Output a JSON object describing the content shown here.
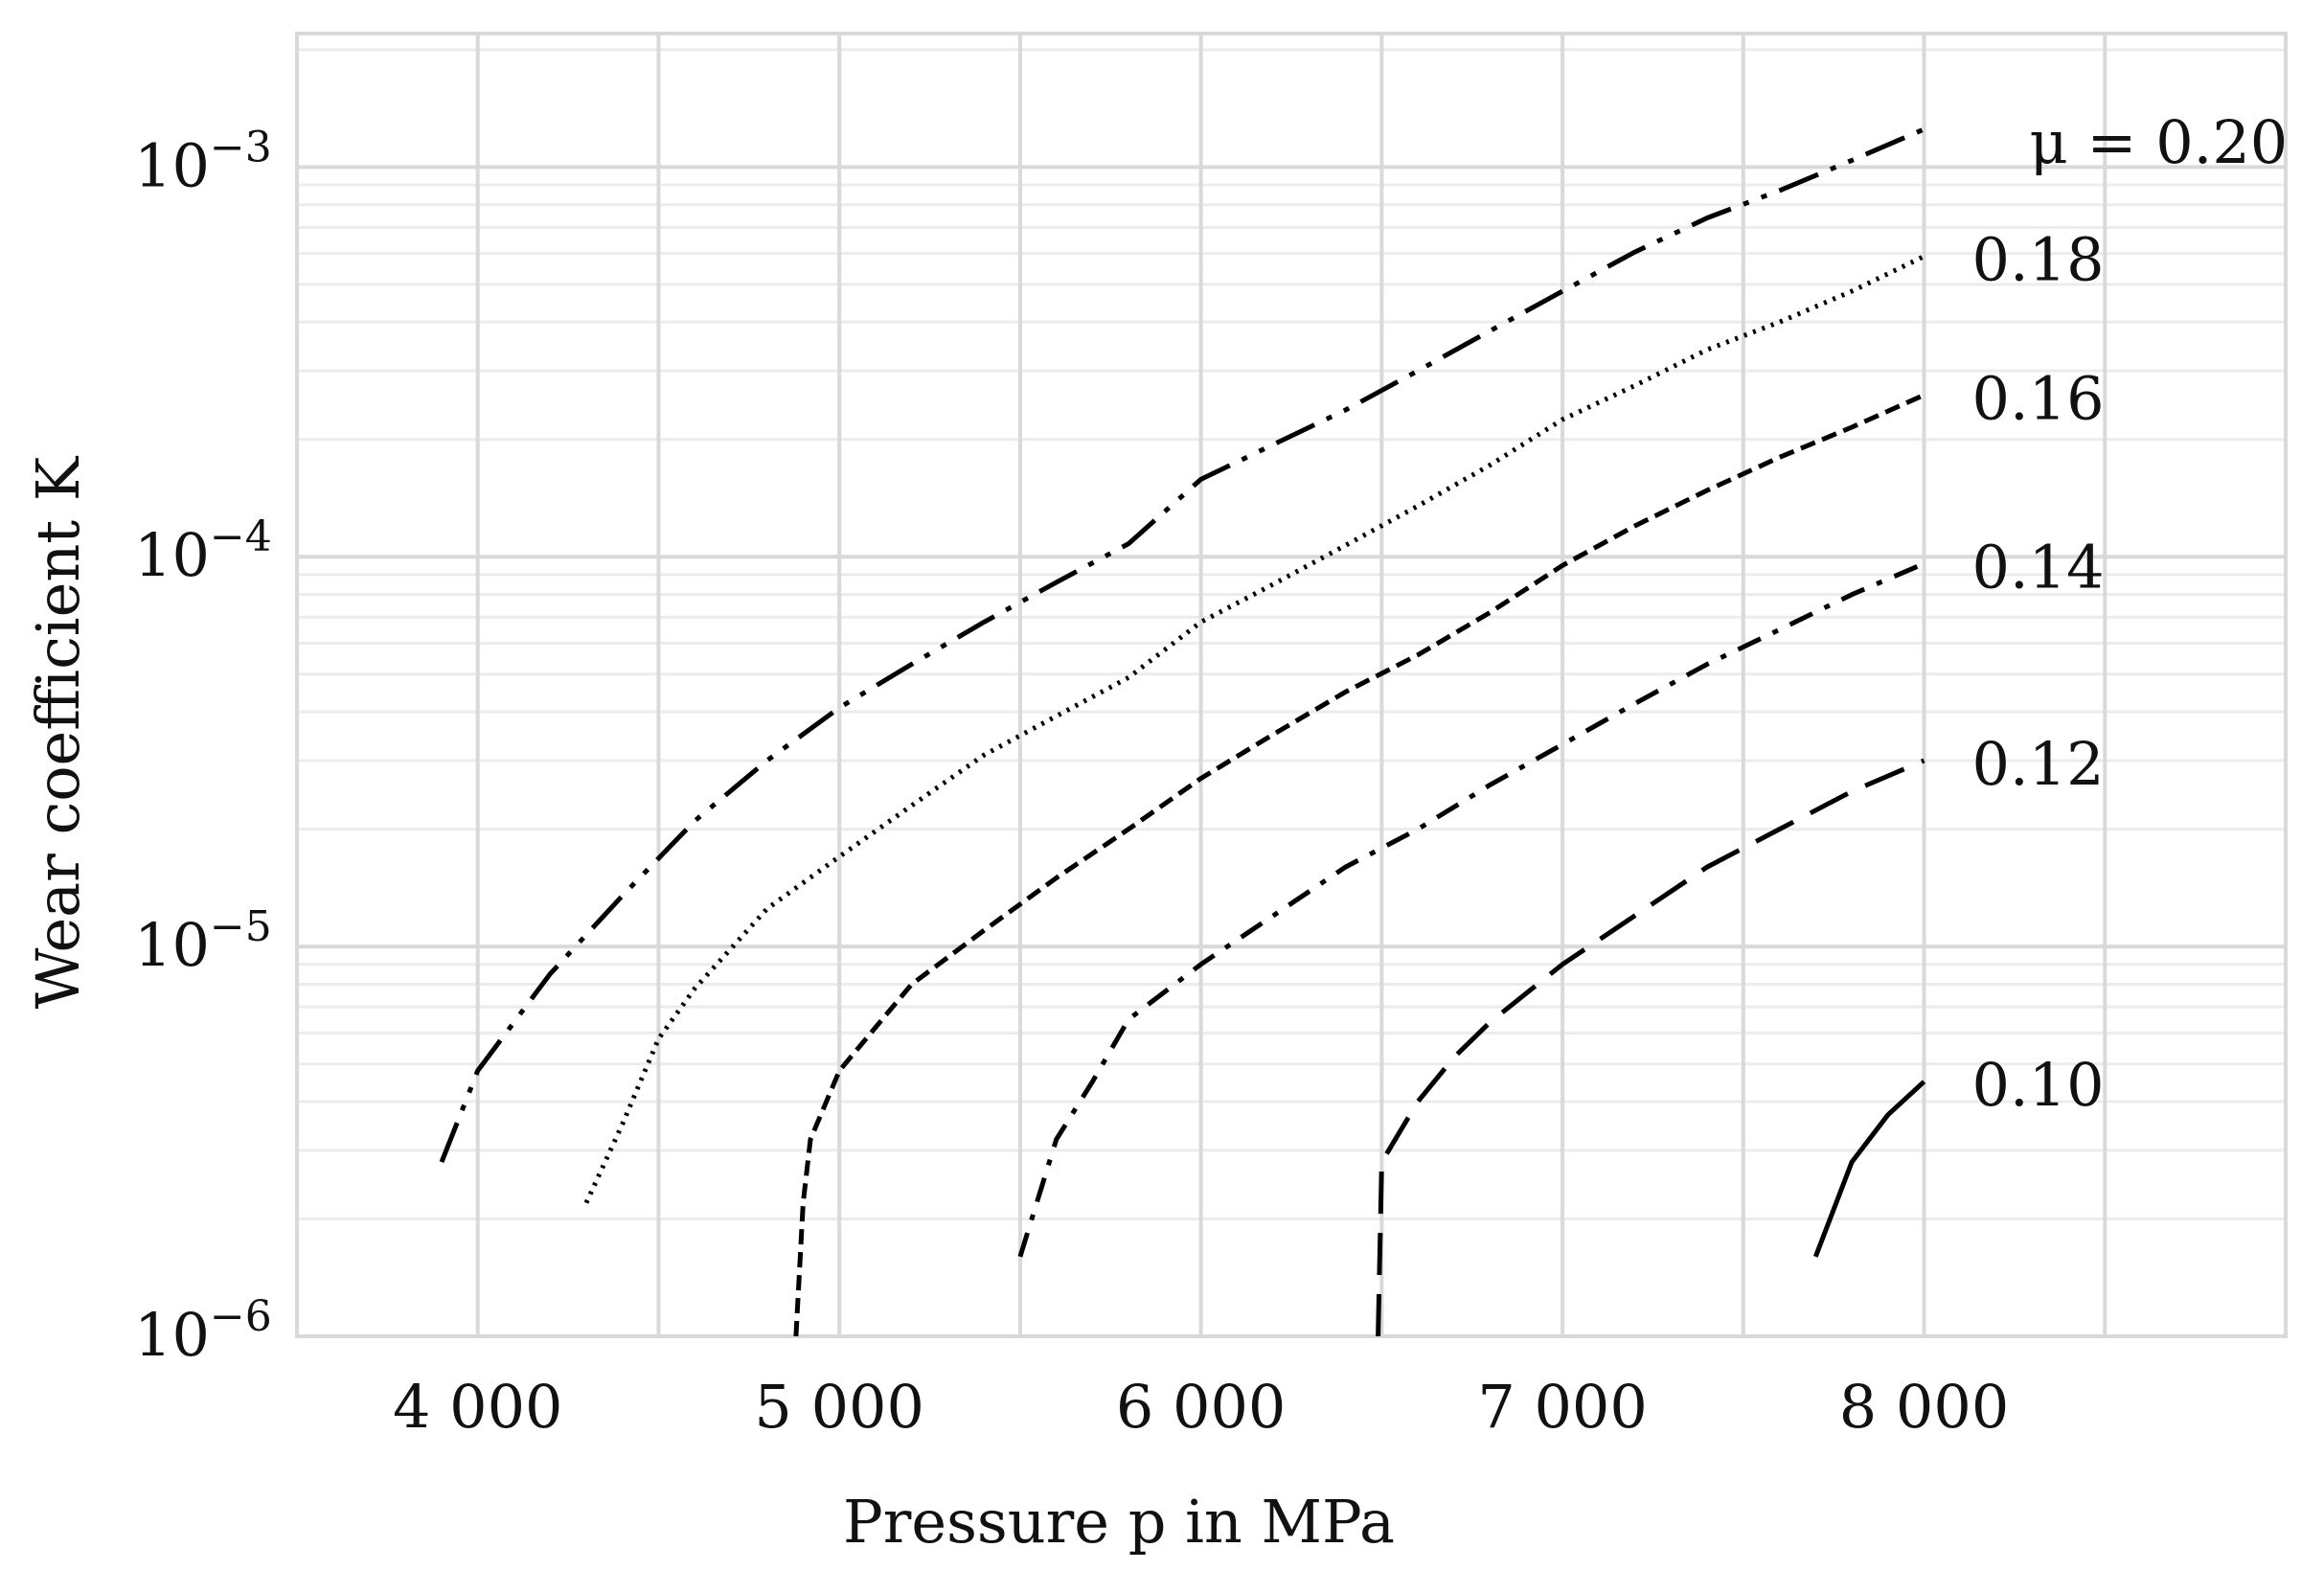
{
  "chart_data": {
    "type": "line",
    "xlabel": "Pressure p in MPa",
    "ylabel": "Wear coefficient K",
    "x_ticks": [
      {
        "value": 4000,
        "label": "4 000"
      },
      {
        "value": 5000,
        "label": "5 000"
      },
      {
        "value": 6000,
        "label": "6 000"
      },
      {
        "value": 7000,
        "label": "7 000"
      },
      {
        "value": 8000,
        "label": "8 000"
      }
    ],
    "y_ticks": [
      {
        "value": 1e-06,
        "base": "10",
        "exp": "−6"
      },
      {
        "value": 1e-05,
        "base": "10",
        "exp": "−5"
      },
      {
        "value": 0.0001,
        "base": "10",
        "exp": "−4"
      },
      {
        "value": 0.001,
        "base": "10",
        "exp": "−3"
      }
    ],
    "xlim": [
      3500,
      9000
    ],
    "ylim": [
      1e-06,
      0.0022
    ],
    "yscale": "log",
    "grid": true,
    "legend": "inline labels at right end of each curve",
    "series": [
      {
        "name": "μ = 0.20",
        "label_text": "μ = 0.20",
        "dash": "dash-dot-dot",
        "color": "#000000",
        "x": [
          3900,
          4000,
          4200,
          4400,
          4600,
          4800,
          5000,
          5200,
          5400,
          5600,
          5800,
          6000,
          6200,
          6400,
          6600,
          6800,
          7000,
          7200,
          7400,
          7600,
          7800,
          8000
        ],
        "y": [
          2.8e-06,
          4.8e-06,
          8.5e-06,
          1.35e-05,
          2.1e-05,
          3e-05,
          4.1e-05,
          5.3e-05,
          6.8e-05,
          8.6e-05,
          0.000108,
          0.000158,
          0.000194,
          0.000238,
          0.0003,
          0.00038,
          0.00048,
          0.000605,
          0.00074,
          0.00087,
          0.00104,
          0.00125
        ]
      },
      {
        "name": "0.18",
        "label_text": "0.18",
        "dash": "dotted",
        "color": "#000000",
        "x": [
          4300,
          4400,
          4500,
          4600,
          4800,
          5000,
          5200,
          5400,
          5600,
          5800,
          6000,
          6200,
          6400,
          6600,
          6800,
          7000,
          7200,
          7400,
          7600,
          7800,
          8000
        ],
        "y": [
          2.2e-06,
          3.5e-06,
          5.8e-06,
          7.8e-06,
          1.25e-05,
          1.7e-05,
          2.3e-05,
          3.1e-05,
          3.9e-05,
          4.9e-05,
          6.8e-05,
          8.5e-05,
          0.000107,
          0.000135,
          0.000172,
          0.000225,
          0.000275,
          0.00034,
          0.0004,
          0.00048,
          0.00059
        ]
      },
      {
        "name": "0.16",
        "label_text": "0.16",
        "dash": "short-dash",
        "color": "#000000",
        "x": [
          4880,
          4900,
          4920,
          5000,
          5100,
          5200,
          5400,
          5600,
          5800,
          6000,
          6200,
          6400,
          6600,
          6800,
          7000,
          7200,
          7400,
          7600,
          7800,
          8000
        ],
        "y": [
          1e-06,
          2.2e-06,
          3.2e-06,
          4.8e-06,
          6.2e-06,
          8e-06,
          1.1e-05,
          1.5e-05,
          2e-05,
          2.7e-05,
          3.5e-05,
          4.5e-05,
          5.6e-05,
          7.2e-05,
          9.5e-05,
          0.00012,
          0.000148,
          0.00018,
          0.000215,
          0.00026
        ]
      },
      {
        "name": "0.14",
        "label_text": "0.14",
        "dash": "dash-dot",
        "color": "#000000",
        "x": [
          5500,
          5600,
          5700,
          5800,
          6000,
          6200,
          6400,
          6600,
          6800,
          7000,
          7200,
          7400,
          7600,
          7800,
          8000
        ],
        "y": [
          1.6e-06,
          3.2e-06,
          4.5e-06,
          6.5e-06,
          9e-06,
          1.2e-05,
          1.6e-05,
          2e-05,
          2.6e-05,
          3.3e-05,
          4.2e-05,
          5.3e-05,
          6.5e-05,
          8e-05,
          9.6e-05
        ]
      },
      {
        "name": "0.12",
        "label_text": "0.12",
        "dash": "long-dash",
        "color": "#000000",
        "x": [
          6490,
          6500,
          6600,
          6700,
          6800,
          7000,
          7200,
          7400,
          7600,
          7800,
          8000
        ],
        "y": [
          1e-06,
          2.8e-06,
          4e-06,
          5.2e-06,
          6.4e-06,
          9e-06,
          1.2e-05,
          1.6e-05,
          2e-05,
          2.5e-05,
          3e-05
        ]
      },
      {
        "name": "0.10",
        "label_text": "0.10",
        "dash": "solid",
        "color": "#000000",
        "x": [
          7700,
          7800,
          7900,
          8000
        ],
        "y": [
          1.6e-06,
          2.8e-06,
          3.7e-06,
          4.5e-06
        ]
      }
    ]
  },
  "colors": {
    "grid_major": "#d9d9d9",
    "grid_minor": "#ececec",
    "frame": "#d9d9d9",
    "line": "#000000",
    "text": "#111111"
  }
}
